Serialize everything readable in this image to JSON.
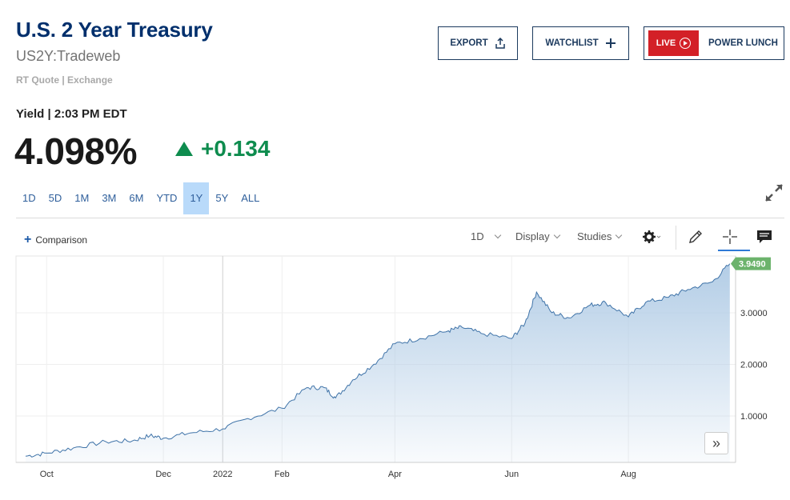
{
  "header": {
    "title": "U.S. 2 Year Treasury",
    "symbol": "US2Y:Tradeweb",
    "quote_source": "RT Quote | Exchange"
  },
  "actions": {
    "export_label": "EXPORT",
    "watchlist_label": "WATCHLIST",
    "live_label": "LIVE",
    "power_lunch_label": "POWER LUNCH"
  },
  "quote": {
    "yield_label": "Yield | 2:03 PM EDT",
    "price": "4.098%",
    "change": "+0.134",
    "change_color": "#0e8c4e"
  },
  "ranges": [
    "1D",
    "5D",
    "1M",
    "3M",
    "6M",
    "YTD",
    "1Y",
    "5Y",
    "ALL"
  ],
  "active_range": "1Y",
  "toolbar": {
    "comparison_label": "Comparison",
    "interval_label": "1D",
    "display_label": "Display",
    "studies_label": "Studies",
    "icons": [
      "gear-icon",
      "pencil-icon",
      "crosshair-icon",
      "comment-icon"
    ]
  },
  "chart_data": {
    "type": "area",
    "x_ticks": [
      "Oct",
      "Dec",
      "2022",
      "Feb",
      "Apr",
      "Jun",
      "Aug"
    ],
    "y_ticks": [
      "1.0000",
      "2.0000",
      "3.0000"
    ],
    "last_value_label": "3.9490",
    "ylim": [
      0.1,
      4.1
    ],
    "x": [
      "2021-09-20",
      "2021-10-01",
      "2021-10-15",
      "2021-11-01",
      "2021-11-15",
      "2021-11-24",
      "2021-12-01",
      "2021-12-15",
      "2022-01-01",
      "2022-01-14",
      "2022-02-01",
      "2022-02-14",
      "2022-02-23",
      "2022-03-01",
      "2022-03-10",
      "2022-03-21",
      "2022-04-01",
      "2022-04-14",
      "2022-04-29",
      "2022-05-06",
      "2022-05-16",
      "2022-06-01",
      "2022-06-08",
      "2022-06-14",
      "2022-06-22",
      "2022-07-01",
      "2022-07-12",
      "2022-07-20",
      "2022-08-01",
      "2022-08-10",
      "2022-08-22",
      "2022-09-01",
      "2022-09-14",
      "2022-09-23"
    ],
    "y": [
      0.22,
      0.28,
      0.38,
      0.5,
      0.52,
      0.62,
      0.57,
      0.67,
      0.75,
      0.95,
      1.15,
      1.55,
      1.55,
      1.35,
      1.7,
      2.0,
      2.4,
      2.5,
      2.65,
      2.72,
      2.6,
      2.5,
      2.8,
      3.4,
      3.0,
      2.9,
      3.15,
      3.2,
      2.92,
      3.2,
      3.3,
      3.45,
      3.6,
      3.95
    ],
    "fill_color": "#b3cde6",
    "line_color": "#3f73a8",
    "last_label_color": "#6cb36c"
  }
}
